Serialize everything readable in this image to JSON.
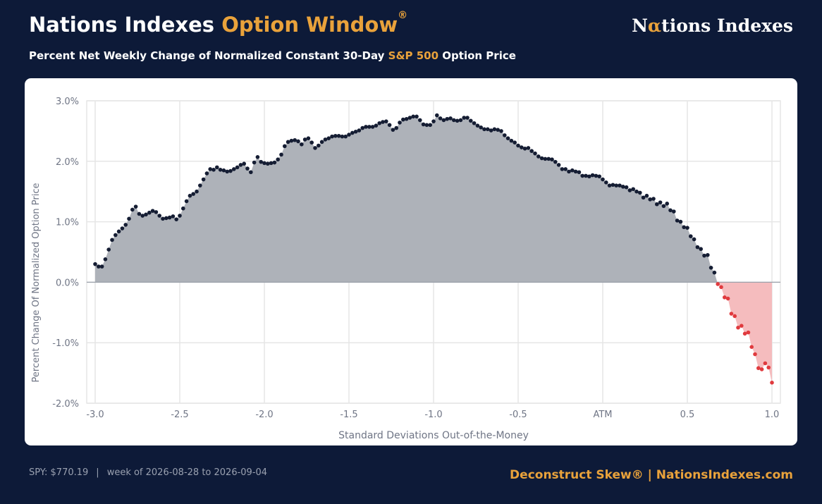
{
  "header": {
    "title_main": "Nations Indexes",
    "title_accent": "Option Window",
    "title_mark": "®",
    "brand_pre": "N",
    "brand_alpha": "α",
    "brand_post": "tions Indexes",
    "subtitle_pre": "Percent Net Weekly Change of Normalized Constant 30-Day",
    "subtitle_accent": "S&P 500",
    "subtitle_post": "Option Price"
  },
  "footer": {
    "spy": "SPY: $770.19",
    "separator": "|",
    "week": "week of 2026-08-28 to 2026-09-04",
    "right": "Deconstruct Skew® | NationsIndexes.com"
  },
  "colors": {
    "background": "#0d1a38",
    "accent": "#e9a23b",
    "positive_fill": "#aeb2b9",
    "positive_point": "#151d33",
    "negative_fill": "#f5bcbe",
    "negative_point": "#e03a3e",
    "grid": "#e6e6e6",
    "axis_text": "#6f7585"
  },
  "chart_data": {
    "type": "area",
    "xlabel": "Standard Deviations Out-of-the-Money",
    "ylabel": "Percent Change Of Normalized Option Price",
    "xlim": [
      -3.05,
      1.05
    ],
    "ylim": [
      -2.0,
      3.0
    ],
    "x_ticks": [
      {
        "value": -3.0,
        "label": "-3.0"
      },
      {
        "value": -2.5,
        "label": "-2.5"
      },
      {
        "value": -2.0,
        "label": "-2.0"
      },
      {
        "value": -1.5,
        "label": "-1.5"
      },
      {
        "value": -1.0,
        "label": "-1.0"
      },
      {
        "value": -0.5,
        "label": "-0.5"
      },
      {
        "value": 0.0,
        "label": "ATM"
      },
      {
        "value": 0.5,
        "label": "0.5"
      },
      {
        "value": 1.0,
        "label": "1.0"
      }
    ],
    "y_ticks": [
      {
        "value": 3.0,
        "label": "3.0%"
      },
      {
        "value": 2.0,
        "label": "2.0%"
      },
      {
        "value": 1.0,
        "label": "1.0%"
      },
      {
        "value": 0.0,
        "label": "0.0%"
      },
      {
        "value": -1.0,
        "label": "-1.0%"
      },
      {
        "value": -2.0,
        "label": "-2.0%"
      }
    ],
    "grid": true,
    "x": [
      -3.0,
      -2.98,
      -2.96,
      -2.94,
      -2.92,
      -2.9,
      -2.88,
      -2.86,
      -2.84,
      -2.82,
      -2.8,
      -2.78,
      -2.76,
      -2.74,
      -2.72,
      -2.7,
      -2.68,
      -2.66,
      -2.64,
      -2.62,
      -2.6,
      -2.58,
      -2.56,
      -2.54,
      -2.52,
      -2.5,
      -2.48,
      -2.46,
      -2.44,
      -2.42,
      -2.4,
      -2.38,
      -2.36,
      -2.34,
      -2.32,
      -2.3,
      -2.28,
      -2.26,
      -2.24,
      -2.22,
      -2.2,
      -2.18,
      -2.16,
      -2.14,
      -2.12,
      -2.1,
      -2.08,
      -2.06,
      -2.04,
      -2.02,
      -2.0,
      -1.98,
      -1.96,
      -1.94,
      -1.92,
      -1.9,
      -1.88,
      -1.86,
      -1.84,
      -1.82,
      -1.8,
      -1.78,
      -1.76,
      -1.74,
      -1.72,
      -1.7,
      -1.68,
      -1.66,
      -1.64,
      -1.62,
      -1.6,
      -1.58,
      -1.56,
      -1.54,
      -1.52,
      -1.5,
      -1.48,
      -1.46,
      -1.44,
      -1.42,
      -1.4,
      -1.38,
      -1.36,
      -1.34,
      -1.32,
      -1.3,
      -1.28,
      -1.26,
      -1.24,
      -1.22,
      -1.2,
      -1.18,
      -1.16,
      -1.14,
      -1.12,
      -1.1,
      -1.08,
      -1.06,
      -1.04,
      -1.02,
      -1.0,
      -0.98,
      -0.96,
      -0.94,
      -0.92,
      -0.9,
      -0.88,
      -0.86,
      -0.84,
      -0.82,
      -0.8,
      -0.78,
      -0.76,
      -0.74,
      -0.72,
      -0.7,
      -0.68,
      -0.66,
      -0.64,
      -0.62,
      -0.6,
      -0.58,
      -0.56,
      -0.54,
      -0.52,
      -0.5,
      -0.48,
      -0.46,
      -0.44,
      -0.42,
      -0.4,
      -0.38,
      -0.36,
      -0.34,
      -0.32,
      -0.3,
      -0.28,
      -0.26,
      -0.24,
      -0.22,
      -0.2,
      -0.18,
      -0.16,
      -0.14,
      -0.12,
      -0.1,
      -0.08,
      -0.06,
      -0.04,
      -0.02,
      0.0,
      0.02,
      0.04,
      0.06,
      0.08,
      0.1,
      0.12,
      0.14,
      0.16,
      0.18,
      0.2,
      0.22,
      0.24,
      0.26,
      0.28,
      0.3,
      0.32,
      0.34,
      0.36,
      0.38,
      0.4,
      0.42,
      0.44,
      0.46,
      0.48,
      0.5,
      0.52,
      0.54,
      0.56,
      0.58,
      0.6,
      0.62,
      0.64,
      0.66,
      0.68,
      0.7,
      0.72,
      0.74,
      0.76,
      0.78,
      0.8,
      0.82,
      0.84,
      0.86,
      0.88,
      0.9,
      0.92,
      0.94,
      0.96,
      0.98,
      1.0
    ],
    "y": [
      0.3,
      0.26,
      0.26,
      0.38,
      0.54,
      0.7,
      0.78,
      0.84,
      0.89,
      0.95,
      1.05,
      1.2,
      1.25,
      1.13,
      1.1,
      1.12,
      1.15,
      1.18,
      1.16,
      1.1,
      1.05,
      1.06,
      1.07,
      1.09,
      1.04,
      1.1,
      1.22,
      1.34,
      1.43,
      1.46,
      1.5,
      1.6,
      1.7,
      1.8,
      1.87,
      1.86,
      1.9,
      1.86,
      1.85,
      1.83,
      1.84,
      1.87,
      1.9,
      1.94,
      1.96,
      1.88,
      1.82,
      1.98,
      2.07,
      1.99,
      1.97,
      1.96,
      1.97,
      1.98,
      2.03,
      2.11,
      2.25,
      2.32,
      2.34,
      2.35,
      2.33,
      2.28,
      2.36,
      2.38,
      2.31,
      2.22,
      2.26,
      2.32,
      2.36,
      2.38,
      2.41,
      2.42,
      2.42,
      2.41,
      2.41,
      2.44,
      2.47,
      2.49,
      2.51,
      2.55,
      2.57,
      2.57,
      2.57,
      2.59,
      2.63,
      2.65,
      2.66,
      2.6,
      2.52,
      2.55,
      2.64,
      2.69,
      2.7,
      2.72,
      2.74,
      2.74,
      2.68,
      2.61,
      2.6,
      2.6,
      2.66,
      2.76,
      2.71,
      2.68,
      2.7,
      2.71,
      2.68,
      2.67,
      2.68,
      2.72,
      2.72,
      2.67,
      2.63,
      2.59,
      2.56,
      2.53,
      2.53,
      2.51,
      2.53,
      2.52,
      2.5,
      2.43,
      2.38,
      2.34,
      2.31,
      2.26,
      2.23,
      2.21,
      2.22,
      2.17,
      2.13,
      2.08,
      2.05,
      2.04,
      2.04,
      2.03,
      1.99,
      1.94,
      1.87,
      1.87,
      1.83,
      1.85,
      1.83,
      1.82,
      1.76,
      1.76,
      1.75,
      1.77,
      1.76,
      1.75,
      1.7,
      1.65,
      1.6,
      1.61,
      1.6,
      1.6,
      1.58,
      1.57,
      1.52,
      1.54,
      1.5,
      1.48,
      1.4,
      1.43,
      1.37,
      1.38,
      1.29,
      1.32,
      1.26,
      1.3,
      1.19,
      1.17,
      1.02,
      1.0,
      0.91,
      0.9,
      0.76,
      0.71,
      0.58,
      0.55,
      0.44,
      0.45,
      0.24,
      0.16,
      -0.03,
      -0.08,
      -0.25,
      -0.27,
      -0.52,
      -0.56,
      -0.75,
      -0.72,
      -0.85,
      -0.83,
      -1.07,
      -1.19,
      -1.42,
      -1.44,
      -1.34,
      -1.41,
      -1.66
    ]
  }
}
